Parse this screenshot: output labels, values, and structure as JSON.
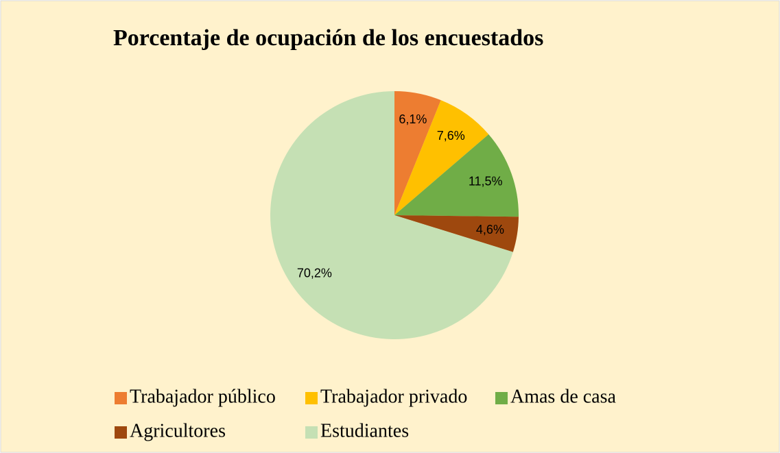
{
  "chart_data": {
    "type": "pie",
    "title": "Porcentaje de ocupación de los encuestados",
    "categories": [
      "Trabajador público",
      "Trabajador privado",
      "Amas de casa",
      "Agricultores",
      "Estudiantes"
    ],
    "values": [
      6.1,
      7.6,
      11.5,
      4.6,
      70.2
    ],
    "value_labels": [
      "6,1%",
      "7,6%",
      "11,5%",
      "4,6%",
      "70,2%"
    ],
    "colors": [
      "#ED7D31",
      "#FFC000",
      "#70AD47",
      "#9E480E",
      "#C5E0B4"
    ],
    "legend": "bottom"
  }
}
